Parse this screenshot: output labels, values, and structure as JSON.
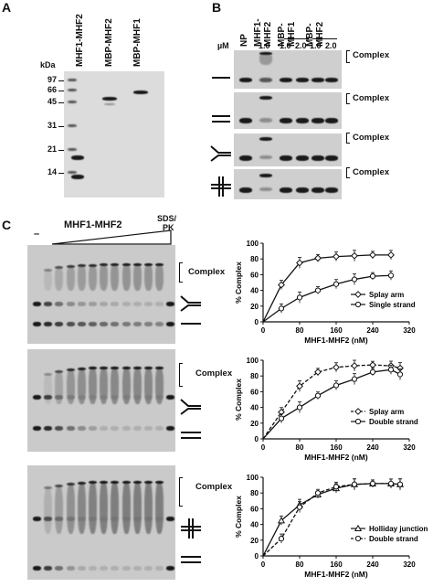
{
  "panels": {
    "a": "A",
    "b": "B",
    "c": "C"
  },
  "panel_a": {
    "kda_label": "kDa",
    "markers": [
      "97",
      "66",
      "45",
      "31",
      "21",
      "14"
    ],
    "lanes": [
      "MHF1-MHF2",
      "MBP-MHF2",
      "MBP-MHF1"
    ]
  },
  "panel_b": {
    "unit": "µM",
    "lanes": [
      "NP",
      "MHF1-\nMHF2",
      "MBP-\nMHF1",
      "MBP-\nMHF2"
    ],
    "lane_np": "NP",
    "lane_mhf12_a": "MHF1-",
    "lane_mhf12_b": "MHF2",
    "lane_mbp1_a": "MBP-",
    "lane_mbp1_b": "MHF1",
    "lane_mbp2_a": "MBP-",
    "lane_mbp2_b": "MHF2",
    "conc": [
      "1.0",
      "1.0",
      "2.0",
      "1.0",
      "2.0"
    ],
    "complex_label": "Complex"
  },
  "panel_c": {
    "gel_title": "MHF1-MHF2",
    "dash": "–",
    "sds_a": "SDS/",
    "sds_b": "PK",
    "complex_label": "Complex"
  },
  "chart_data": [
    {
      "type": "line",
      "xlabel": "MHF1-MHF2 (nM)",
      "ylabel": "% Complex",
      "xlim": [
        0,
        320
      ],
      "ylim": [
        0,
        100
      ],
      "xticks": [
        "0",
        "80",
        "160",
        "240",
        "320"
      ],
      "yticks": [
        "0",
        "20",
        "40",
        "60",
        "80",
        "100"
      ],
      "legend_position": "bottom-right",
      "series": [
        {
          "name": "Splay arm",
          "marker": "diamond",
          "dash": false,
          "x": [
            0,
            40,
            80,
            120,
            160,
            200,
            240,
            280
          ],
          "y": [
            0,
            47,
            75,
            81,
            83,
            84,
            85,
            85
          ]
        },
        {
          "name": "Single strand",
          "marker": "circle",
          "dash": false,
          "x": [
            0,
            40,
            80,
            120,
            160,
            200,
            240,
            280
          ],
          "y": [
            0,
            17,
            31,
            40,
            48,
            54,
            58,
            59
          ]
        }
      ]
    },
    {
      "type": "line",
      "xlabel": "MHF1-MHF2 (nM)",
      "ylabel": "% Complex",
      "xlim": [
        0,
        320
      ],
      "ylim": [
        0,
        100
      ],
      "xticks": [
        "0",
        "80",
        "160",
        "240",
        "320"
      ],
      "yticks": [
        "0",
        "20",
        "40",
        "60",
        "80",
        "100"
      ],
      "legend_position": "bottom-right",
      "series": [
        {
          "name": "Splay arm",
          "marker": "diamond",
          "dash": true,
          "x": [
            0,
            40,
            80,
            120,
            160,
            200,
            240,
            280,
            300
          ],
          "y": [
            0,
            34,
            67,
            85,
            91,
            93,
            94,
            93,
            90
          ]
        },
        {
          "name": "Double strand",
          "marker": "circle",
          "dash": false,
          "x": [
            0,
            40,
            80,
            120,
            160,
            200,
            240,
            280,
            300
          ],
          "y": [
            0,
            26,
            40,
            55,
            68,
            76,
            85,
            88,
            82
          ]
        }
      ]
    },
    {
      "type": "line",
      "xlabel": "MHF1-MHF2 (nM)",
      "ylabel": "% Complex",
      "xlim": [
        0,
        320
      ],
      "ylim": [
        0,
        100
      ],
      "xticks": [
        "0",
        "80",
        "160",
        "240",
        "320"
      ],
      "yticks": [
        "0",
        "20",
        "40",
        "60",
        "80",
        "100"
      ],
      "legend_position": "bottom-right",
      "series": [
        {
          "name": "Holliday junction",
          "marker": "triangle",
          "dash": false,
          "x": [
            0,
            40,
            80,
            120,
            160,
            200,
            240,
            280,
            300
          ],
          "y": [
            0,
            45,
            65,
            78,
            86,
            91,
            92,
            92,
            91
          ]
        },
        {
          "name": "Double strand",
          "marker": "circle",
          "dash": true,
          "x": [
            0,
            40,
            80,
            120,
            160,
            200,
            240,
            280,
            300
          ],
          "y": [
            0,
            22,
            62,
            80,
            88,
            91,
            92,
            92,
            91
          ]
        }
      ]
    }
  ]
}
